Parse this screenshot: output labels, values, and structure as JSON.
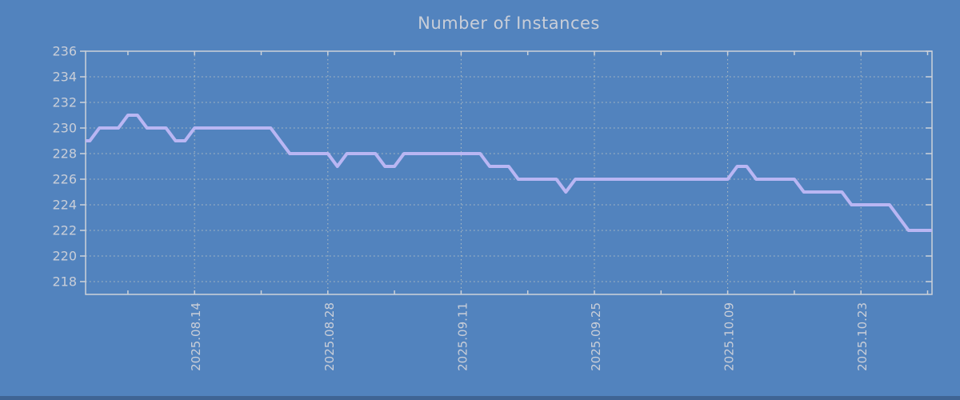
{
  "title": "Number of Instances",
  "colors": {
    "background": "#5283be",
    "line": "#b9b6f3",
    "axis": "#ccd1d9",
    "grid": "#d8d5c4",
    "text": "#c9ced8",
    "bottom_strip": "#3f6494"
  },
  "chart_data": {
    "type": "line",
    "title": "Number of Instances",
    "xlabel": "",
    "ylabel": "",
    "legend": "none",
    "grid": "dotted",
    "x_start_date": "2025-08-02",
    "x_cadence": "daily",
    "x_tick_labels": [
      "2025.08.14",
      "2025.08.28",
      "2025.09.11",
      "2025.09.25",
      "2025.10.09",
      "2025.10.23"
    ],
    "x_major_tick_indices": [
      12,
      26,
      40,
      54,
      68,
      82
    ],
    "x_minor_tick_indices": [
      5,
      19,
      33,
      47,
      61,
      75,
      89
    ],
    "y_tick_labels": [
      "236",
      "234",
      "232",
      "230",
      "228",
      "226",
      "224",
      "222",
      "220",
      "218"
    ],
    "y_tick_values": [
      236,
      234,
      232,
      230,
      228,
      226,
      224,
      222,
      220,
      218
    ],
    "y_grid_values": [
      234,
      232,
      230,
      228,
      226,
      224,
      222,
      220,
      218
    ],
    "ylim": [
      217,
      236
    ],
    "series": [
      {
        "name": "instances",
        "values": [
          229,
          229,
          230,
          230,
          230,
          231,
          231,
          230,
          230,
          230,
          229,
          229,
          230,
          230,
          230,
          230,
          230,
          230,
          230,
          230,
          230,
          229,
          228,
          228,
          228,
          228,
          228,
          227,
          228,
          228,
          228,
          228,
          227,
          227,
          228,
          228,
          228,
          228,
          228,
          228,
          228,
          228,
          228,
          227,
          227,
          227,
          226,
          226,
          226,
          226,
          226,
          225,
          226,
          226,
          226,
          226,
          226,
          226,
          226,
          226,
          226,
          226,
          226,
          226,
          226,
          226,
          226,
          226,
          226,
          227,
          227,
          226,
          226,
          226,
          226,
          226,
          225,
          225,
          225,
          225,
          225,
          224,
          224,
          224,
          224,
          224,
          223,
          222,
          222,
          222,
          222
        ]
      }
    ]
  }
}
